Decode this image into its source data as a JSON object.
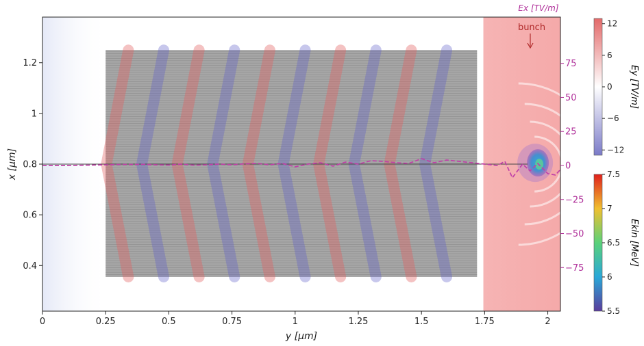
{
  "chart_data": {
    "type": "heatmap",
    "title": "",
    "xlabel": "y [μm]",
    "ylabel": "x [μm]",
    "xlim": [
      0,
      2.05
    ],
    "ylim": [
      0.22,
      1.38
    ],
    "x_ticks": [
      "0",
      "0.25",
      "0.5",
      "0.75",
      "1",
      "1.25",
      "1.5",
      "1.75",
      "2"
    ],
    "x_tick_values": [
      0,
      0.25,
      0.5,
      0.75,
      1.0,
      1.25,
      1.5,
      1.75,
      2.0
    ],
    "y_ticks": [
      "0.4",
      "0.6",
      "0.8",
      "1",
      "1.2"
    ],
    "y_tick_values": [
      0.4,
      0.6,
      0.8,
      1.0,
      1.2
    ],
    "right_axis": {
      "label": "Ex [TV/m]",
      "color": "#b0309a",
      "ylim": [
        -107,
        109
      ],
      "ticks": [
        "−75",
        "−50",
        "−25",
        "0",
        "25",
        "50",
        "75"
      ],
      "tick_values": [
        -75,
        -50,
        -25,
        0,
        25,
        50,
        75
      ]
    },
    "annotation": {
      "text": "bunch",
      "color": "#b02a2a"
    },
    "target_region": {
      "y_range": [
        0.25,
        1.72
      ],
      "x_range": [
        0.355,
        1.25
      ]
    },
    "series": [
      {
        "name": "Ex",
        "style": "dashed",
        "color": "#c040a8",
        "x": [
          0,
          0.1,
          0.2,
          0.3,
          0.4,
          0.45,
          0.5,
          0.55,
          0.6,
          0.65,
          0.7,
          0.75,
          0.8,
          0.85,
          0.9,
          0.95,
          1.0,
          1.05,
          1.1,
          1.15,
          1.2,
          1.25,
          1.3,
          1.35,
          1.4,
          1.45,
          1.5,
          1.55,
          1.6,
          1.65,
          1.7,
          1.75,
          1.8,
          1.83,
          1.86,
          1.9,
          1.93,
          1.96,
          2.0,
          2.03,
          2.05
        ],
        "y": [
          0,
          0,
          0.3,
          0.7,
          0.8,
          0.5,
          0.3,
          1.0,
          0.2,
          0.5,
          1.0,
          0.5,
          1.2,
          1.5,
          0.5,
          1.5,
          -1.0,
          1.0,
          2.0,
          -0.5,
          2.5,
          1.0,
          3.5,
          3.0,
          2.0,
          1.5,
          5.0,
          2.0,
          4.0,
          3.0,
          2.0,
          1.0,
          0,
          3.0,
          -9.0,
          1.0,
          -4.0,
          1.5,
          -6.0,
          -7.0,
          -3.0
        ]
      }
    ],
    "colorbars": [
      {
        "label": "Ey [TV/m]",
        "range": [
          -13,
          13
        ],
        "ticks": [
          "12",
          "6",
          "0",
          "−6",
          "−12"
        ],
        "tick_values": [
          12,
          6,
          0,
          -6,
          -12
        ],
        "colors": [
          "#e36a6a",
          "#ffffff",
          "#7b7bc8"
        ]
      },
      {
        "label": "Ekin [MeV]",
        "range": [
          5.5,
          7.5
        ],
        "ticks": [
          "7.5",
          "7",
          "6.5",
          "6",
          "5.5"
        ],
        "tick_values": [
          7.5,
          7,
          6.5,
          6,
          5.5
        ],
        "colors": [
          "#e0201c",
          "#f0c030",
          "#5ad17a",
          "#2aa8d8",
          "#5a3c9c"
        ]
      }
    ]
  }
}
